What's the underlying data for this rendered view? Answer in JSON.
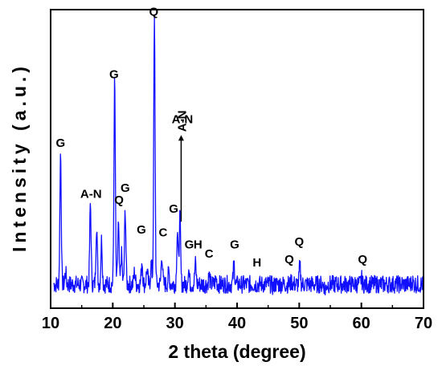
{
  "chart_data": {
    "type": "line",
    "title": "",
    "xlabel": "2 theta (degree)",
    "ylabel": "Intensity (a.u.)",
    "xlim": [
      10,
      70
    ],
    "ylim": [
      0,
      1
    ],
    "x_ticks": [
      10,
      20,
      30,
      40,
      50,
      60,
      70
    ],
    "x_tick_labels": [
      "10",
      "20",
      "30",
      "40",
      "50",
      "60",
      "70"
    ],
    "y_ticks_labeled": false,
    "grid": false,
    "line_color": "#1010ff",
    "baseline": 0.08,
    "noise_amplitude": 0.03,
    "peaks": [
      {
        "x": 11.6,
        "y": 0.52
      },
      {
        "x": 12.4,
        "y": 0.12
      },
      {
        "x": 16.4,
        "y": 0.35
      },
      {
        "x": 17.4,
        "y": 0.28
      },
      {
        "x": 18.2,
        "y": 0.23
      },
      {
        "x": 20.3,
        "y": 0.76
      },
      {
        "x": 20.9,
        "y": 0.28
      },
      {
        "x": 21.4,
        "y": 0.18
      },
      {
        "x": 22.0,
        "y": 0.33
      },
      {
        "x": 23.5,
        "y": 0.12
      },
      {
        "x": 24.7,
        "y": 0.16
      },
      {
        "x": 25.5,
        "y": 0.13
      },
      {
        "x": 26.2,
        "y": 0.15
      },
      {
        "x": 26.7,
        "y": 0.96
      },
      {
        "x": 27.9,
        "y": 0.18
      },
      {
        "x": 29.0,
        "y": 0.12
      },
      {
        "x": 30.4,
        "y": 0.26
      },
      {
        "x": 30.8,
        "y": 0.31
      },
      {
        "x": 32.2,
        "y": 0.13
      },
      {
        "x": 33.3,
        "y": 0.15
      },
      {
        "x": 35.5,
        "y": 0.11
      },
      {
        "x": 36.6,
        "y": 0.1
      },
      {
        "x": 39.5,
        "y": 0.15
      },
      {
        "x": 42.5,
        "y": 0.08
      },
      {
        "x": 45.8,
        "y": 0.07
      },
      {
        "x": 48.8,
        "y": 0.09
      },
      {
        "x": 50.1,
        "y": 0.14
      },
      {
        "x": 54.2,
        "y": 0.06
      },
      {
        "x": 60.0,
        "y": 0.1
      },
      {
        "x": 68.2,
        "y": 0.09
      }
    ],
    "annotations": [
      {
        "text": "G",
        "x": 11.6,
        "y": 0.54
      },
      {
        "text": "A-N",
        "x": 16.5,
        "y": 0.37
      },
      {
        "text": "G",
        "x": 20.2,
        "y": 0.77
      },
      {
        "text": "Q",
        "x": 21.0,
        "y": 0.35
      },
      {
        "text": "G",
        "x": 22.0,
        "y": 0.39
      },
      {
        "text": "Q",
        "x": 26.6,
        "y": 0.98
      },
      {
        "text": "G",
        "x": 24.6,
        "y": 0.25
      },
      {
        "text": "C",
        "x": 28.1,
        "y": 0.24
      },
      {
        "text": "G",
        "x": 29.8,
        "y": 0.32
      },
      {
        "text": "A-N",
        "x": 31.2,
        "y": 0.62
      },
      {
        "text": "G",
        "x": 32.3,
        "y": 0.2
      },
      {
        "text": "H",
        "x": 33.7,
        "y": 0.2
      },
      {
        "text": "C",
        "x": 35.5,
        "y": 0.17
      },
      {
        "text": "G",
        "x": 39.6,
        "y": 0.2
      },
      {
        "text": "H",
        "x": 43.2,
        "y": 0.14
      },
      {
        "text": "Q",
        "x": 48.4,
        "y": 0.15
      },
      {
        "text": "Q",
        "x": 50.0,
        "y": 0.21
      },
      {
        "text": "Q",
        "x": 60.2,
        "y": 0.15
      }
    ],
    "arrow_annotation": {
      "text": "A-N",
      "x": 31.0,
      "y_from": 0.29,
      "y_to": 0.58
    }
  }
}
